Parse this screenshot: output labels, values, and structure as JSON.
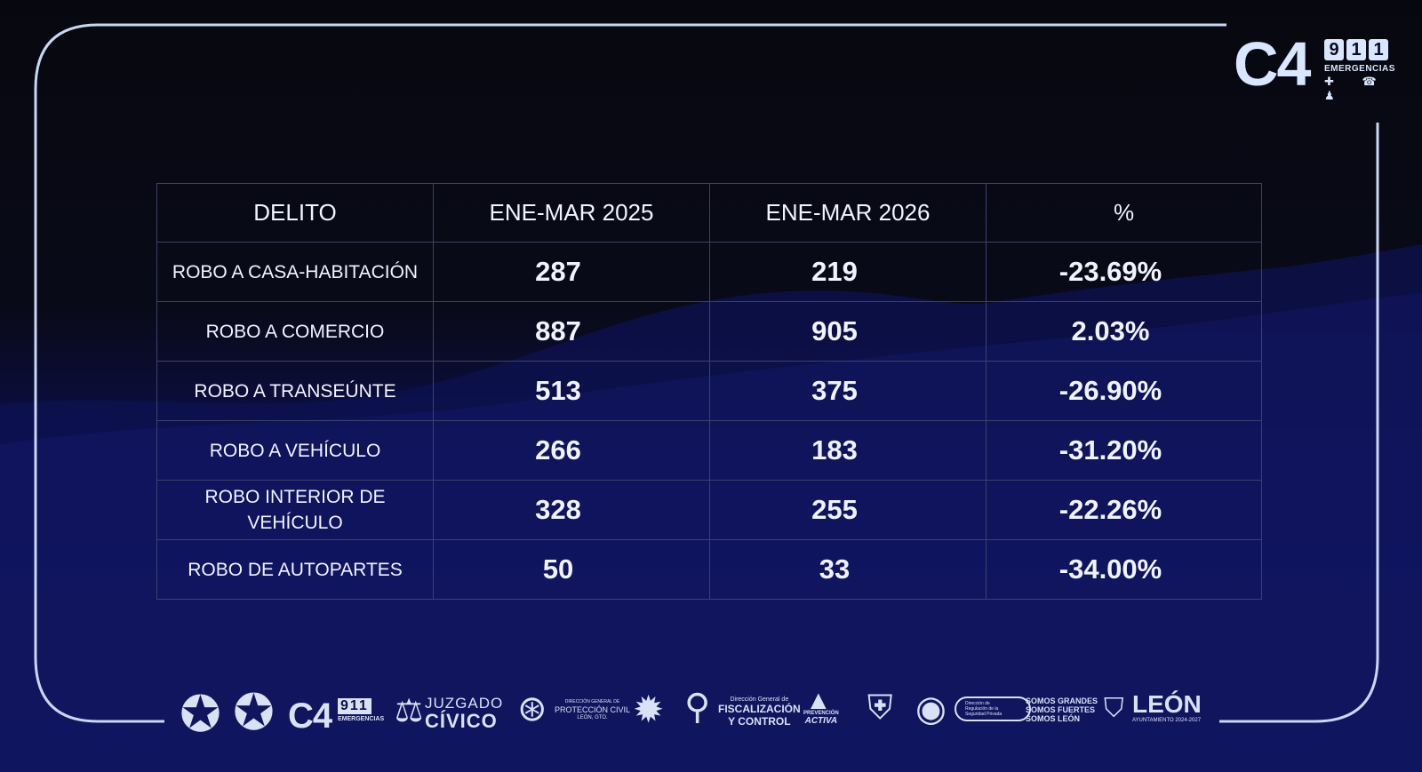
{
  "table": {
    "headers": [
      "DELITO",
      "ENE-MAR 2025",
      "ENE-MAR 2026",
      "%"
    ],
    "rows": [
      {
        "delito": "ROBO A CASA-HABITACIÓN",
        "y2025": "287",
        "y2026": "219",
        "pct": "-23.69%"
      },
      {
        "delito": "ROBO A COMERCIO",
        "y2025": "887",
        "y2026": "905",
        "pct": "2.03%"
      },
      {
        "delito": "ROBO A TRANSEÚNTE",
        "y2025": "513",
        "y2026": "375",
        "pct": "-26.90%"
      },
      {
        "delito": "ROBO A VEHÍCULO",
        "y2025": "266",
        "y2026": "183",
        "pct": "-31.20%"
      },
      {
        "delito": "ROBO INTERIOR DE VEHÍCULO",
        "y2025": "328",
        "y2026": "255",
        "pct": "-22.26%"
      },
      {
        "delito": "ROBO DE AUTOPARTES",
        "y2025": "50",
        "y2026": "33",
        "pct": "-34.00%"
      }
    ]
  },
  "top_logo": {
    "c4": "C4",
    "digits": [
      "9",
      "1",
      "1"
    ],
    "subtitle": "EMERGENCIAS",
    "icons": "✚ ☎ ♟"
  },
  "footer": {
    "c4": "C4",
    "digits": "911",
    "emergencias": "EMERGENCIAS",
    "juzgado_top": "JUZGADO",
    "juzgado_bottom": "CÍVICO",
    "proteccion_1": "DIRECCIÓN GENERAL DE",
    "proteccion_2": "PROTECCIÓN CIVIL",
    "proteccion_3": "LEÓN, GTO.",
    "fisc_1": "Dirección General de",
    "fisc_2": "FISCALIZACIÓN",
    "fisc_3": "Y CONTROL",
    "prevencion_1": "PREVENCIÓN",
    "prevencion_2": "ACTIVA",
    "regulacion_1": "Dirección de",
    "regulacion_2": "Regulación de la",
    "regulacion_3": "Seguridad Privada",
    "somos_1": "SOMOS GRANDES",
    "somos_2": "SOMOS FUERTES",
    "somos_3": "SOMOS LEÓN",
    "leon": "LEÓN",
    "ayuntamiento": "AYUNTAMIENTO 2024-2027"
  },
  "colors": {
    "frame": "#c9d6f4",
    "text": "#f1f3ff",
    "grid": "#3d416d",
    "bg_dark": "#07080f",
    "bg_blue": "#101563"
  },
  "icons": [
    "star-badge-icon",
    "phone-icon",
    "cross-icon",
    "scales-icon",
    "magnifier-icon",
    "shield-icon"
  ]
}
